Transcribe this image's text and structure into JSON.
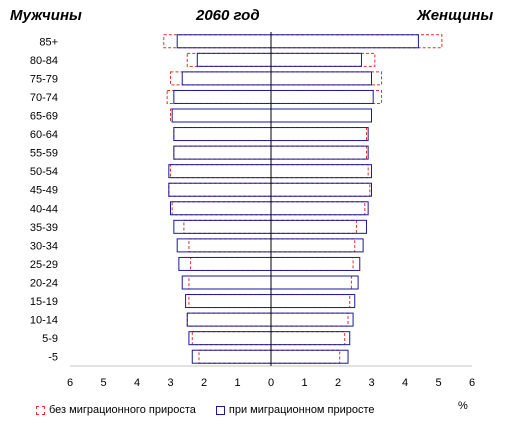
{
  "chart_data": {
    "type": "bar",
    "orientation": "horizontal-population-pyramid",
    "title": "2060 год",
    "left_label": "Мужчины",
    "right_label": "Женщины",
    "unit_label": "%",
    "categories": [
      "85+",
      "80-84",
      "75-79",
      "70-74",
      "65-69",
      "60-64",
      "55-59",
      "50-54",
      "45-49",
      "40-44",
      "35-39",
      "30-34",
      "25-29",
      "20-24",
      "15-19",
      "10-14",
      "5-9",
      "-5"
    ],
    "x_ticks": [
      "6",
      "5",
      "4",
      "3",
      "2",
      "1",
      "0",
      "1",
      "2",
      "3",
      "4",
      "5",
      "6"
    ],
    "xlim": [
      -6,
      6
    ],
    "series": [
      {
        "name": "без миграционного прироста",
        "style": "dashed",
        "color": "#e03030",
        "male": [
          3.2,
          2.5,
          3.0,
          3.1,
          3.0,
          2.9,
          2.9,
          3.0,
          3.05,
          2.95,
          2.6,
          2.45,
          2.4,
          2.45,
          2.45,
          2.5,
          2.35,
          2.15
        ],
        "female": [
          5.1,
          3.1,
          3.3,
          3.3,
          3.0,
          2.85,
          2.85,
          2.9,
          2.95,
          2.8,
          2.55,
          2.5,
          2.45,
          2.4,
          2.35,
          2.3,
          2.2,
          2.05
        ]
      },
      {
        "name": "при миграционном приросте",
        "style": "solid",
        "color": "#1a1a9a",
        "male": [
          2.8,
          2.2,
          2.65,
          2.9,
          2.95,
          2.9,
          2.9,
          3.05,
          3.05,
          3.0,
          2.9,
          2.8,
          2.75,
          2.65,
          2.55,
          2.5,
          2.45,
          2.35
        ],
        "female": [
          4.4,
          2.7,
          3.0,
          3.05,
          3.0,
          2.9,
          2.9,
          3.0,
          3.0,
          2.9,
          2.85,
          2.75,
          2.65,
          2.6,
          2.5,
          2.45,
          2.35,
          2.3
        ]
      }
    ]
  }
}
